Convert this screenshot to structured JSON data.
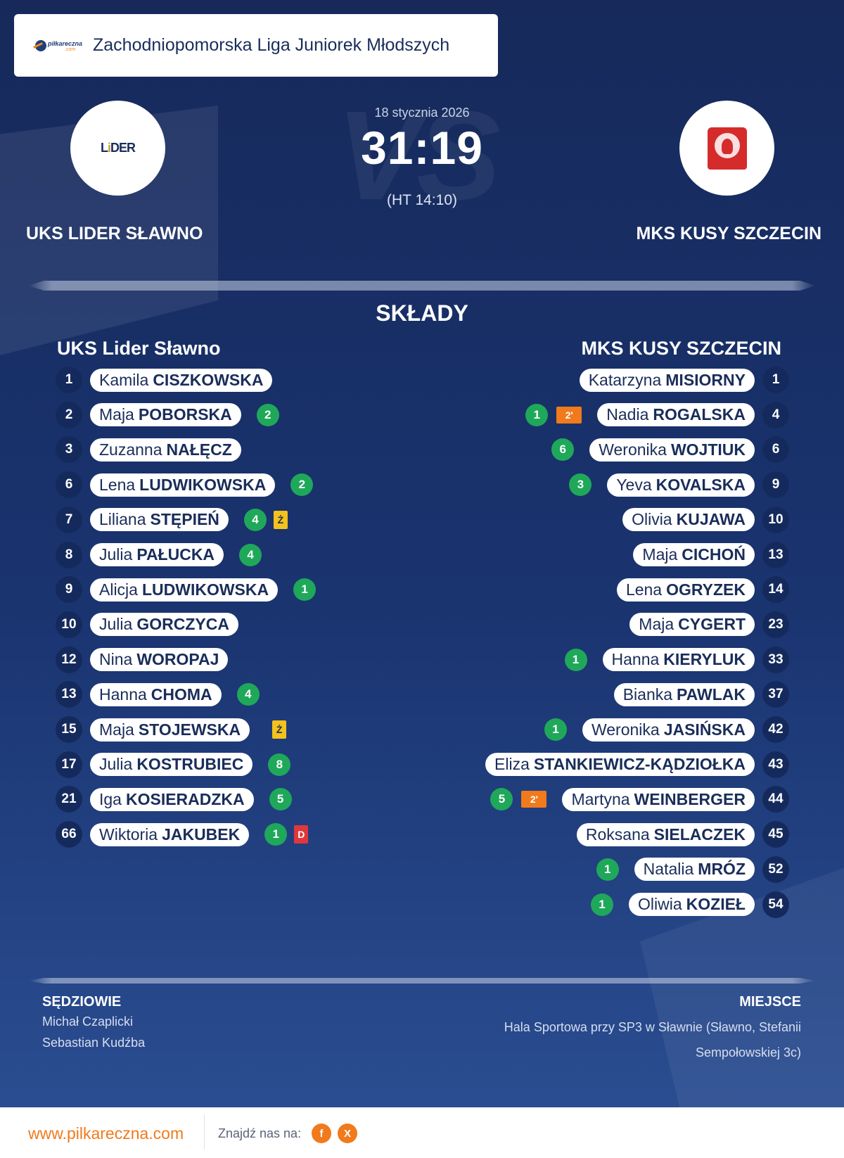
{
  "header": {
    "logo_text": "piłkareczna",
    "logo_sub": ".com",
    "league": "Zachodniopomorska Liga Juniorek Młodszych"
  },
  "match": {
    "date": "18 stycznia 2026",
    "score": "31:19",
    "halftime": "(HT 14:10)",
    "vs_text": "VS",
    "home_name": "UKS LIDER SŁAWNO",
    "away_name": "MKS KUSY SZCZECIN"
  },
  "lineups": {
    "title": "SKŁADY",
    "home_title": "UKS Lider Sławno",
    "away_title": "MKS KUSY SZCZECIN",
    "home": [
      {
        "num": "1",
        "first": "Kamila",
        "last": "CISZKOWSKA",
        "goals": "",
        "card": "",
        "susp": ""
      },
      {
        "num": "2",
        "first": "Maja",
        "last": "POBORSKA",
        "goals": "2",
        "card": "",
        "susp": ""
      },
      {
        "num": "3",
        "first": "Zuzanna",
        "last": "NAŁĘCZ",
        "goals": "",
        "card": "",
        "susp": ""
      },
      {
        "num": "6",
        "first": "Lena",
        "last": "LUDWIKOWSKA",
        "goals": "2",
        "card": "",
        "susp": ""
      },
      {
        "num": "7",
        "first": "Liliana",
        "last": "STĘPIEŃ",
        "goals": "4",
        "card": "Ż",
        "susp": ""
      },
      {
        "num": "8",
        "first": "Julia",
        "last": "PAŁUCKA",
        "goals": "4",
        "card": "",
        "susp": ""
      },
      {
        "num": "9",
        "first": "Alicja",
        "last": "LUDWIKOWSKA",
        "goals": "1",
        "card": "",
        "susp": ""
      },
      {
        "num": "10",
        "first": "Julia",
        "last": "GORCZYCA",
        "goals": "",
        "card": "",
        "susp": ""
      },
      {
        "num": "12",
        "first": "Nina",
        "last": "WOROPAJ",
        "goals": "",
        "card": "",
        "susp": ""
      },
      {
        "num": "13",
        "first": "Hanna",
        "last": "CHOMA",
        "goals": "4",
        "card": "",
        "susp": ""
      },
      {
        "num": "15",
        "first": "Maja",
        "last": "STOJEWSKA",
        "goals": "",
        "card": "Ż",
        "susp": ""
      },
      {
        "num": "17",
        "first": "Julia",
        "last": "KOSTRUBIEC",
        "goals": "8",
        "card": "",
        "susp": ""
      },
      {
        "num": "21",
        "first": "Iga",
        "last": "KOSIERADZKA",
        "goals": "5",
        "card": "",
        "susp": ""
      },
      {
        "num": "66",
        "first": "Wiktoria",
        "last": "JAKUBEK",
        "goals": "1",
        "card": "D",
        "susp": ""
      }
    ],
    "away": [
      {
        "num": "1",
        "first": "Katarzyna",
        "last": "MISIORNY",
        "goals": "",
        "card": "",
        "susp": ""
      },
      {
        "num": "4",
        "first": "Nadia",
        "last": "ROGALSKA",
        "goals": "1",
        "card": "",
        "susp": "2'"
      },
      {
        "num": "6",
        "first": "Weronika",
        "last": "WOJTIUK",
        "goals": "6",
        "card": "",
        "susp": ""
      },
      {
        "num": "9",
        "first": "Yeva",
        "last": "KOVALSKA",
        "goals": "3",
        "card": "",
        "susp": ""
      },
      {
        "num": "10",
        "first": "Olivia",
        "last": "KUJAWA",
        "goals": "",
        "card": "",
        "susp": ""
      },
      {
        "num": "13",
        "first": "Maja",
        "last": "CICHOŃ",
        "goals": "",
        "card": "",
        "susp": ""
      },
      {
        "num": "14",
        "first": "Lena",
        "last": "OGRYZEK",
        "goals": "",
        "card": "",
        "susp": ""
      },
      {
        "num": "23",
        "first": "Maja",
        "last": "CYGERT",
        "goals": "",
        "card": "",
        "susp": ""
      },
      {
        "num": "33",
        "first": "Hanna",
        "last": "KIERYLUK",
        "goals": "1",
        "card": "",
        "susp": ""
      },
      {
        "num": "37",
        "first": "Bianka",
        "last": "PAWLAK",
        "goals": "",
        "card": "",
        "susp": ""
      },
      {
        "num": "42",
        "first": "Weronika",
        "last": "JASIŃSKA",
        "goals": "1",
        "card": "",
        "susp": ""
      },
      {
        "num": "43",
        "first": "Eliza",
        "last": "STANKIEWICZ-KĄDZIOŁKA",
        "goals": "",
        "card": "",
        "susp": ""
      },
      {
        "num": "44",
        "first": "Martyna",
        "last": "WEINBERGER",
        "goals": "5",
        "card": "",
        "susp": "2'"
      },
      {
        "num": "45",
        "first": "Roksana",
        "last": "SIELACZEK",
        "goals": "",
        "card": "",
        "susp": ""
      },
      {
        "num": "52",
        "first": "Natalia",
        "last": "MRÓZ",
        "goals": "1",
        "card": "",
        "susp": ""
      },
      {
        "num": "54",
        "first": "Oliwia",
        "last": "KOZIEŁ",
        "goals": "1",
        "card": "",
        "susp": ""
      }
    ]
  },
  "officials": {
    "referees_title": "SĘDZIOWIE",
    "referees": [
      "Michał Czaplicki",
      "Sebastian Kudźba"
    ],
    "place_title": "MIEJSCE",
    "place": "Hala Sportowa przy SP3 w Sławnie (Sławno, Stefanii Sempołowskiej 3c)"
  },
  "footer": {
    "site": "www.pilkareczna.com",
    "find_us": "Znajdź nas na:",
    "social": [
      {
        "icon": "facebook-icon",
        "glyph": "f"
      },
      {
        "icon": "x-icon",
        "glyph": "X"
      }
    ]
  },
  "colors": {
    "bg_top": "#16295a",
    "bg_bottom": "#2a4d91",
    "goal": "#1fa85a",
    "yellow_card": "#f3c21b",
    "red_card": "#e0373c",
    "suspension": "#f07a1c",
    "accent": "#f07a1c"
  }
}
